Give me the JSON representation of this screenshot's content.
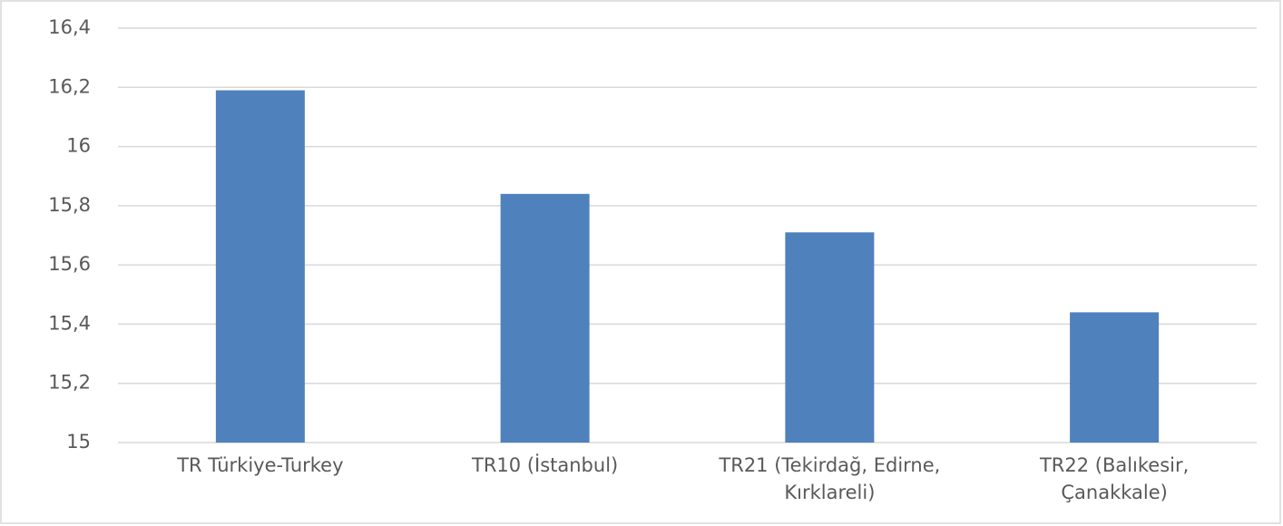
{
  "chart_data": {
    "type": "bar",
    "categories": [
      "TR Türkiye-Turkey",
      "TR10 (İstanbul)",
      "TR21 (Tekirdağ, Edirne, Kırklareli)",
      "TR22 (Balıkesir, Çanakkale)"
    ],
    "values": [
      16.19,
      15.84,
      15.71,
      15.44
    ],
    "color": "#4f81bd",
    "ylim": [
      15,
      16.4
    ],
    "yticks": [
      15,
      {
        "value": 15.2,
        "label": "15,2"
      },
      {
        "value": 15.4,
        "label": "15,4"
      },
      {
        "value": 15.6,
        "label": "15,6"
      },
      {
        "value": 15.8,
        "label": "15,8"
      },
      16,
      {
        "value": 16.2,
        "label": "16,2"
      },
      {
        "value": 16.4,
        "label": "16,4"
      }
    ],
    "grid": true
  }
}
